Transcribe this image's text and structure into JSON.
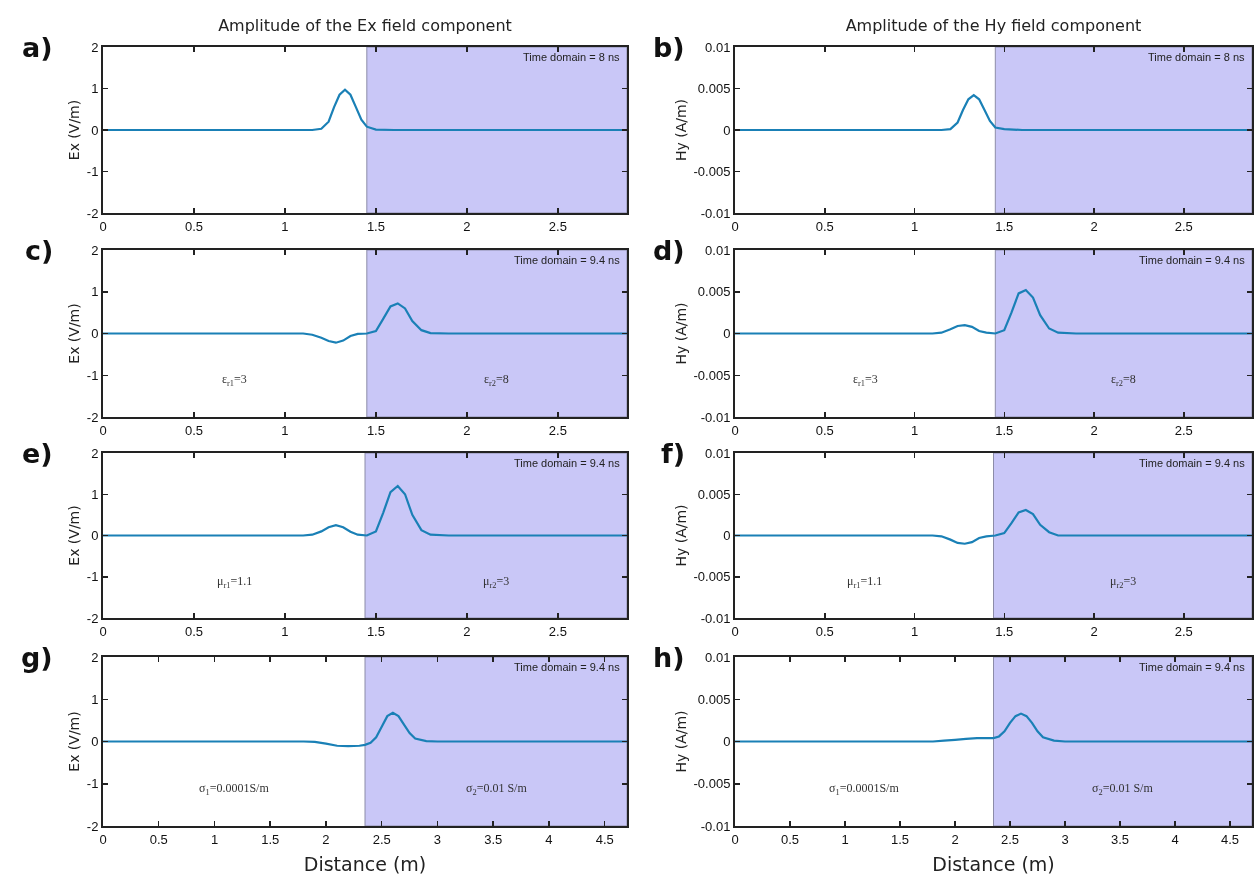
{
  "chart_data": [
    {
      "type": "line",
      "title": "Amplitude of the Ex field component",
      "ylabel": "Ex (V/m)",
      "x": [
        0,
        0.5,
        1,
        1.15,
        1.2,
        1.24,
        1.27,
        1.3,
        1.33,
        1.36,
        1.39,
        1.42,
        1.45,
        1.5,
        1.6,
        2,
        2.5,
        2.88
      ],
      "series": [
        {
          "color": "#1a80b6",
          "values": [
            0,
            0,
            0,
            0,
            0.03,
            0.2,
            0.55,
            0.85,
            0.97,
            0.85,
            0.55,
            0.25,
            0.08,
            0.01,
            0,
            0,
            0,
            0
          ]
        }
      ],
      "xlim": [
        0,
        2.88
      ],
      "xticks": [
        0,
        0.5,
        1,
        1.5,
        2,
        2.5
      ],
      "ylim": [
        -2,
        2
      ],
      "yticks": [
        -2,
        -1,
        0,
        1,
        2
      ],
      "bands": [
        {
          "axis": "x",
          "from": 1.45,
          "to": 2.88,
          "color": "#c9c7f7"
        }
      ],
      "annotations": [
        "a)",
        "Time domain = 8 ns"
      ]
    },
    {
      "type": "line",
      "title": "Amplitude of the Hy field component",
      "ylabel": "Hy (A/m)",
      "x": [
        0,
        0.5,
        1,
        1.15,
        1.2,
        1.24,
        1.27,
        1.3,
        1.33,
        1.36,
        1.39,
        1.42,
        1.45,
        1.5,
        1.6,
        2,
        2.5,
        2.88
      ],
      "series": [
        {
          "color": "#1a80b6",
          "values": [
            0,
            0,
            0,
            0,
            0.0001,
            0.0009,
            0.0024,
            0.0037,
            0.0042,
            0.0037,
            0.0024,
            0.0011,
            0.0003,
            0.0001,
            0,
            0,
            0,
            0
          ]
        }
      ],
      "xlim": [
        0,
        2.88
      ],
      "xticks": [
        0,
        0.5,
        1,
        1.5,
        2,
        2.5
      ],
      "ylim": [
        -0.01,
        0.01
      ],
      "yticks": [
        -0.01,
        -0.005,
        0,
        0.005,
        0.01
      ],
      "bands": [
        {
          "axis": "x",
          "from": 1.45,
          "to": 2.88,
          "color": "#c9c7f7"
        }
      ],
      "annotations": [
        "b)",
        "Time domain = 8 ns"
      ]
    },
    {
      "type": "line",
      "ylabel": "Ex (V/m)",
      "x": [
        0,
        0.5,
        1,
        1.1,
        1.15,
        1.2,
        1.24,
        1.28,
        1.32,
        1.36,
        1.4,
        1.45,
        1.5,
        1.54,
        1.58,
        1.62,
        1.66,
        1.7,
        1.75,
        1.8,
        1.9,
        2.5,
        2.88
      ],
      "series": [
        {
          "color": "#1a80b6",
          "values": [
            0,
            0,
            0,
            0,
            -0.03,
            -0.1,
            -0.18,
            -0.22,
            -0.17,
            -0.06,
            -0.01,
            0,
            0.06,
            0.35,
            0.65,
            0.72,
            0.6,
            0.3,
            0.08,
            0.01,
            0,
            0,
            0
          ]
        }
      ],
      "xlim": [
        0,
        2.88
      ],
      "xticks": [
        0,
        0.5,
        1,
        1.5,
        2,
        2.5
      ],
      "ylim": [
        -2,
        2
      ],
      "yticks": [
        -2,
        -1,
        0,
        1,
        2
      ],
      "bands": [
        {
          "axis": "x",
          "from": 1.45,
          "to": 2.88,
          "color": "#c9c7f7"
        }
      ],
      "annotations": [
        "c)",
        "Time domain = 9.4 ns",
        "ε$_{r1}$=3",
        "ε$_{r2}$=8"
      ]
    },
    {
      "type": "line",
      "ylabel": "Hy (A/m)",
      "x": [
        0,
        0.5,
        1,
        1.1,
        1.15,
        1.2,
        1.24,
        1.28,
        1.32,
        1.36,
        1.4,
        1.45,
        1.5,
        1.54,
        1.58,
        1.62,
        1.66,
        1.7,
        1.75,
        1.8,
        1.9,
        2.5,
        2.88
      ],
      "series": [
        {
          "color": "#1a80b6",
          "values": [
            0,
            0,
            0,
            0,
            0.0001,
            0.0005,
            0.0009,
            0.001,
            0.0008,
            0.0003,
            0.0001,
            0,
            0.0004,
            0.0025,
            0.0048,
            0.0052,
            0.0043,
            0.0022,
            0.0006,
            0.0001,
            0,
            0,
            0
          ]
        }
      ],
      "xlim": [
        0,
        2.88
      ],
      "xticks": [
        0,
        0.5,
        1,
        1.5,
        2,
        2.5
      ],
      "ylim": [
        -0.01,
        0.01
      ],
      "yticks": [
        -0.01,
        -0.005,
        0,
        0.005,
        0.01
      ],
      "bands": [
        {
          "axis": "x",
          "from": 1.45,
          "to": 2.88,
          "color": "#c9c7f7"
        }
      ],
      "annotations": [
        "d)",
        "Time domain = 9.4 ns",
        "ε$_{r1}$=3",
        "ε$_{r2}$=8"
      ]
    },
    {
      "type": "line",
      "ylabel": "Ex (V/m)",
      "x": [
        0,
        0.5,
        1,
        1.1,
        1.15,
        1.2,
        1.24,
        1.28,
        1.32,
        1.36,
        1.4,
        1.45,
        1.5,
        1.54,
        1.58,
        1.62,
        1.66,
        1.7,
        1.75,
        1.8,
        1.9,
        2.5,
        2.88
      ],
      "series": [
        {
          "color": "#1a80b6",
          "values": [
            0,
            0,
            0,
            0,
            0.02,
            0.1,
            0.2,
            0.25,
            0.2,
            0.09,
            0.02,
            0,
            0.1,
            0.55,
            1.05,
            1.2,
            1,
            0.5,
            0.13,
            0.02,
            0,
            0,
            0
          ]
        }
      ],
      "xlim": [
        0,
        2.88
      ],
      "xticks": [
        0,
        0.5,
        1,
        1.5,
        2,
        2.5
      ],
      "ylim": [
        -2,
        2
      ],
      "yticks": [
        -2,
        -1,
        0,
        1,
        2
      ],
      "bands": [
        {
          "axis": "x",
          "from": 1.44,
          "to": 2.88,
          "color": "#c9c7f7"
        }
      ],
      "annotations": [
        "e)",
        "Time domain = 9.4 ns",
        "μ$_{r1}$=1.1",
        "μ$_{r2}$=3"
      ]
    },
    {
      "type": "line",
      "ylabel": "Hy (A/m)",
      "x": [
        0,
        0.5,
        1,
        1.1,
        1.15,
        1.2,
        1.24,
        1.28,
        1.32,
        1.36,
        1.4,
        1.45,
        1.5,
        1.54,
        1.58,
        1.62,
        1.66,
        1.7,
        1.75,
        1.8,
        1.9,
        2.5,
        2.88
      ],
      "series": [
        {
          "color": "#1a80b6",
          "values": [
            0,
            0,
            0,
            0,
            -0.0001,
            -0.0005,
            -0.0009,
            -0.001,
            -0.0008,
            -0.0003,
            -0.0001,
            0,
            0.0003,
            0.0015,
            0.0028,
            0.0031,
            0.0026,
            0.0013,
            0.0004,
            0,
            0,
            0,
            0
          ]
        }
      ],
      "xlim": [
        0,
        2.88
      ],
      "xticks": [
        0,
        0.5,
        1,
        1.5,
        2,
        2.5
      ],
      "ylim": [
        -0.01,
        0.01
      ],
      "yticks": [
        -0.01,
        -0.005,
        0,
        0.005,
        0.01
      ],
      "bands": [
        {
          "axis": "x",
          "from": 1.44,
          "to": 2.88,
          "color": "#c9c7f7"
        }
      ],
      "annotations": [
        "f)",
        "Time domain = 9.4 ns",
        "μ$_{r1}$=1.1",
        "μ$_{r2}$=3"
      ]
    },
    {
      "type": "line",
      "xlabel": "Distance (m)",
      "ylabel": "Ex (V/m)",
      "x": [
        0,
        1,
        1.5,
        1.8,
        1.9,
        2,
        2.1,
        2.2,
        2.3,
        2.35,
        2.4,
        2.45,
        2.5,
        2.55,
        2.6,
        2.65,
        2.7,
        2.75,
        2.8,
        2.9,
        3,
        4,
        4.7
      ],
      "series": [
        {
          "color": "#1a80b6",
          "values": [
            0,
            0,
            0,
            0,
            -0.01,
            -0.05,
            -0.1,
            -0.11,
            -0.1,
            -0.08,
            -0.03,
            0.1,
            0.35,
            0.6,
            0.68,
            0.6,
            0.4,
            0.2,
            0.07,
            0.01,
            0,
            0,
            0
          ]
        }
      ],
      "xlim": [
        0,
        4.7
      ],
      "xticks": [
        0,
        0.5,
        1,
        1.5,
        2,
        2.5,
        3,
        3.5,
        4,
        4.5
      ],
      "ylim": [
        -2,
        2
      ],
      "yticks": [
        -2,
        -1,
        0,
        1,
        2
      ],
      "bands": [
        {
          "axis": "x",
          "from": 2.35,
          "to": 4.7,
          "color": "#c9c7f7"
        }
      ],
      "annotations": [
        "g)",
        "Time domain = 9.4 ns",
        "σ$_{1}$=0.0001S/m",
        "σ$_{2}$=0.01 S/m"
      ]
    },
    {
      "type": "line",
      "xlabel": "Distance (m)",
      "ylabel": "Hy (A/m)",
      "x": [
        0,
        1,
        1.5,
        1.8,
        1.9,
        2,
        2.1,
        2.2,
        2.3,
        2.35,
        2.4,
        2.45,
        2.5,
        2.55,
        2.6,
        2.65,
        2.7,
        2.75,
        2.8,
        2.9,
        3,
        4,
        4.7
      ],
      "series": [
        {
          "color": "#1a80b6",
          "values": [
            0,
            0,
            0,
            0,
            0.0001,
            0.0002,
            0.0003,
            0.0004,
            0.0004,
            0.0004,
            0.0006,
            0.0012,
            0.0022,
            0.003,
            0.0033,
            0.003,
            0.0022,
            0.0012,
            0.0005,
            0.0001,
            0,
            0,
            0
          ]
        }
      ],
      "xlim": [
        0,
        4.7
      ],
      "xticks": [
        0,
        0.5,
        1,
        1.5,
        2,
        2.5,
        3,
        3.5,
        4,
        4.5
      ],
      "ylim": [
        -0.01,
        0.01
      ],
      "yticks": [
        -0.01,
        -0.005,
        0,
        0.005,
        0.01
      ],
      "bands": [
        {
          "axis": "x",
          "from": 2.35,
          "to": 4.7,
          "color": "#c9c7f7"
        }
      ],
      "annotations": [
        "h)",
        "Time domain = 9.4 ns",
        "σ$_{1}$=0.0001S/m",
        "σ$_{2}$=0.01 S/m"
      ]
    }
  ]
}
